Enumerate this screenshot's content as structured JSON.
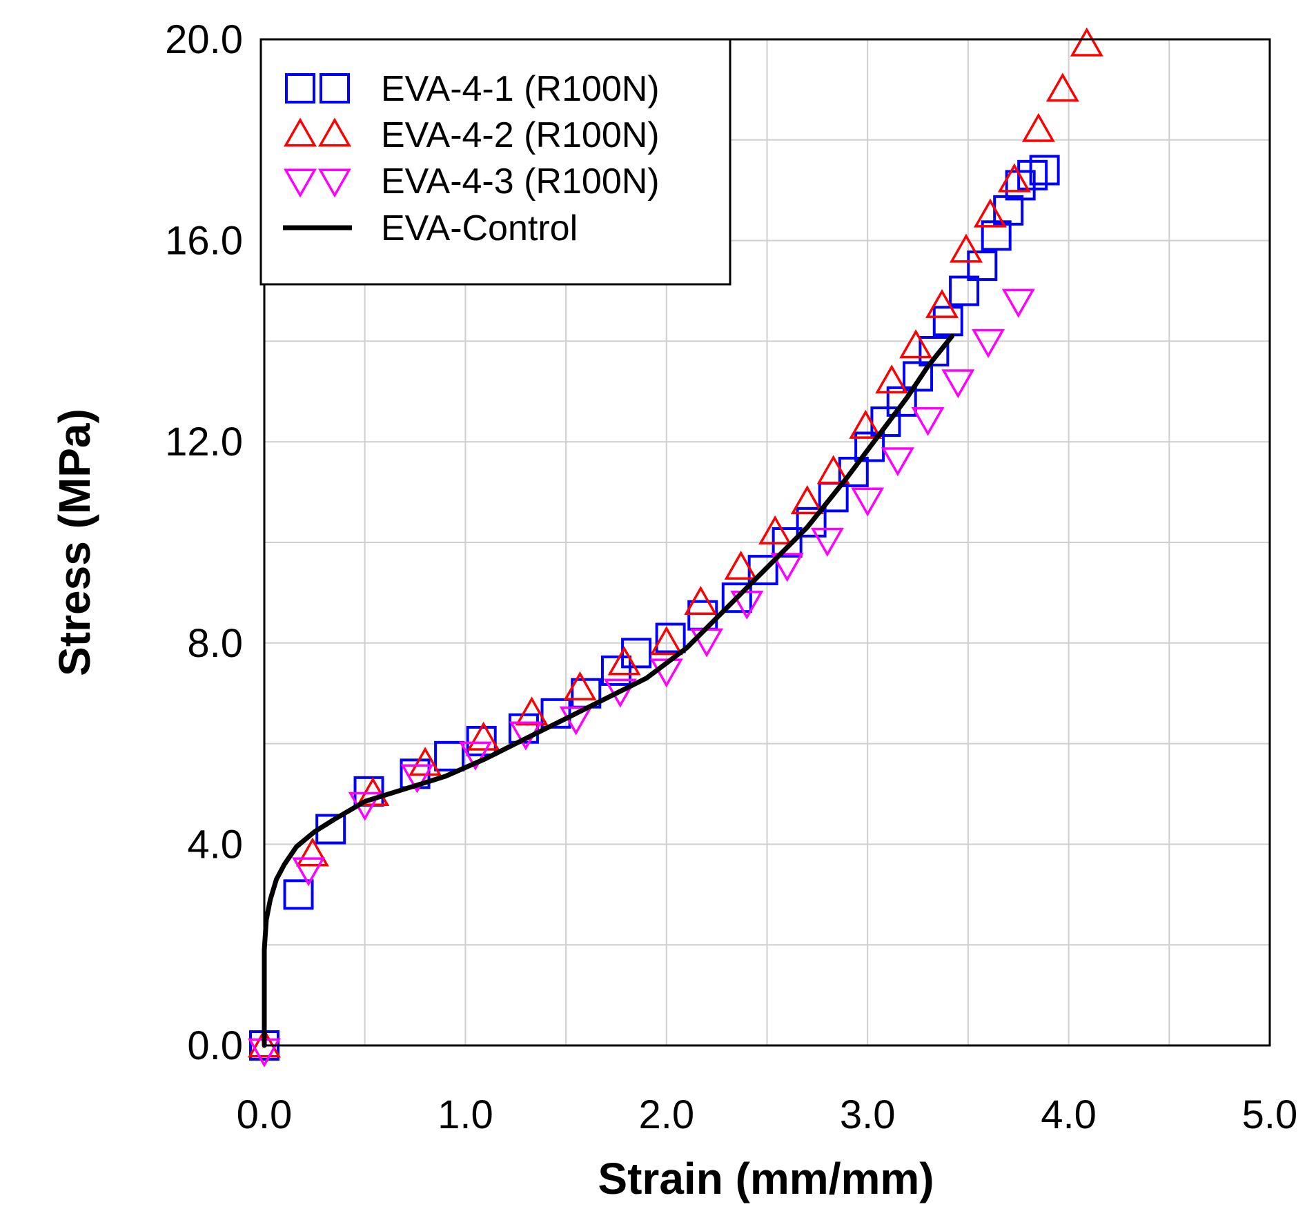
{
  "chart_data": {
    "type": "scatter",
    "title": "",
    "xlabel": "Strain (mm/mm)",
    "ylabel": "Stress (MPa)",
    "xlim": [
      0,
      5
    ],
    "ylim": [
      0,
      20
    ],
    "x_major_ticks": [
      0,
      1,
      2,
      3,
      4,
      5
    ],
    "x_tick_labels": [
      "0.0",
      "1.0",
      "2.0",
      "3.0",
      "4.0",
      "5.0"
    ],
    "y_major_ticks": [
      0,
      4,
      8,
      12,
      16,
      20
    ],
    "y_tick_labels": [
      "0.0",
      "4.0",
      "8.0",
      "12.0",
      "16.0",
      "20.0"
    ],
    "x_grid": [
      0.5,
      1,
      1.5,
      2,
      2.5,
      3,
      3.5,
      4,
      4.5
    ],
    "y_grid": [
      2,
      4,
      6,
      8,
      10,
      12,
      14,
      16,
      18
    ],
    "grid": true,
    "legend_position": "top-left",
    "series": [
      {
        "name": "EVA-4-1 (R100N)",
        "marker": "square",
        "color": "#0000ff",
        "x": [
          0.0,
          0.17,
          0.33,
          0.52,
          0.75,
          0.92,
          1.08,
          1.29,
          1.45,
          1.6,
          1.75,
          1.85,
          2.02,
          2.18,
          2.35,
          2.48,
          2.6,
          2.72,
          2.83,
          2.93,
          3.01,
          3.09,
          3.17,
          3.25,
          3.33,
          3.4,
          3.48,
          3.57,
          3.64,
          3.7,
          3.76,
          3.82,
          3.88
        ],
        "y": [
          0.0,
          3.0,
          4.3,
          5.05,
          5.4,
          5.75,
          6.05,
          6.3,
          6.6,
          7.0,
          7.45,
          7.8,
          8.1,
          8.55,
          8.9,
          9.45,
          10.0,
          10.4,
          10.9,
          11.4,
          11.9,
          12.4,
          12.8,
          13.3,
          13.8,
          14.4,
          15.0,
          15.5,
          16.1,
          16.6,
          17.1,
          17.3,
          17.4
        ]
      },
      {
        "name": "EVA-4-2 (R100N)",
        "marker": "triangle-up",
        "color": "#ff0000",
        "x": [
          0.0,
          0.24,
          0.54,
          0.8,
          1.09,
          1.33,
          1.57,
          1.79,
          2.0,
          2.17,
          2.37,
          2.54,
          2.7,
          2.83,
          2.99,
          3.12,
          3.24,
          3.37,
          3.49,
          3.61,
          3.73,
          3.85,
          3.97,
          4.09
        ],
        "y": [
          0.0,
          3.8,
          5.0,
          5.6,
          6.1,
          6.6,
          7.1,
          7.6,
          8.0,
          8.8,
          9.5,
          10.2,
          10.8,
          11.4,
          12.3,
          13.2,
          13.9,
          14.7,
          15.8,
          16.5,
          17.2,
          18.2,
          19.0,
          19.9
        ]
      },
      {
        "name": "EVA-4-3 (R100N)",
        "marker": "triangle-down",
        "color": "#ff00ff",
        "x": [
          0.0,
          0.22,
          0.5,
          0.76,
          1.05,
          1.3,
          1.55,
          1.77,
          2.0,
          2.2,
          2.4,
          2.6,
          2.8,
          3.0,
          3.15,
          3.3,
          3.45,
          3.6,
          3.75
        ],
        "y": [
          -0.1,
          3.5,
          4.8,
          5.35,
          5.8,
          6.2,
          6.5,
          7.05,
          7.45,
          8.05,
          8.8,
          9.55,
          10.05,
          10.85,
          11.65,
          12.45,
          13.2,
          14.0,
          14.8
        ]
      },
      {
        "name": "EVA-Control",
        "marker": "line",
        "color": "#000000",
        "x": [
          0.0,
          0.0,
          0.01,
          0.03,
          0.06,
          0.1,
          0.16,
          0.25,
          0.35,
          0.5,
          0.7,
          0.9,
          1.1,
          1.3,
          1.5,
          1.7,
          1.9,
          2.1,
          2.3,
          2.5,
          2.7,
          2.9,
          3.05,
          3.2,
          3.3,
          3.42
        ],
        "y": [
          0.0,
          1.9,
          2.5,
          2.9,
          3.3,
          3.6,
          3.95,
          4.25,
          4.5,
          4.85,
          5.1,
          5.35,
          5.7,
          6.1,
          6.5,
          6.9,
          7.3,
          7.9,
          8.7,
          9.5,
          10.3,
          11.3,
          12.1,
          12.9,
          13.5,
          14.1
        ]
      }
    ]
  }
}
